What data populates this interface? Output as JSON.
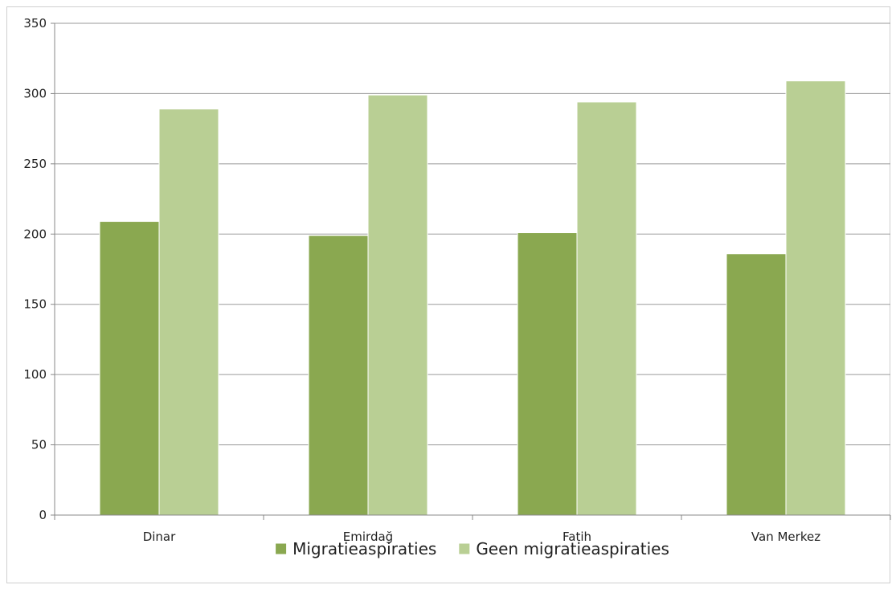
{
  "chart_data": {
    "type": "bar",
    "categories": [
      "Dinar",
      "Emirdağ",
      "Fatih",
      "Van Merkez"
    ],
    "series": [
      {
        "name": "Migratieaspiraties",
        "values": [
          209,
          199,
          201,
          186
        ],
        "color": "#8aa850"
      },
      {
        "name": "Geen migratieaspiraties",
        "values": [
          289,
          299,
          294,
          309
        ],
        "color": "#b9cf94"
      }
    ],
    "ylim": [
      0,
      350
    ],
    "yticks": [
      0,
      50,
      100,
      150,
      200,
      250,
      300,
      350
    ],
    "grid": true,
    "legend_position": "bottom"
  }
}
